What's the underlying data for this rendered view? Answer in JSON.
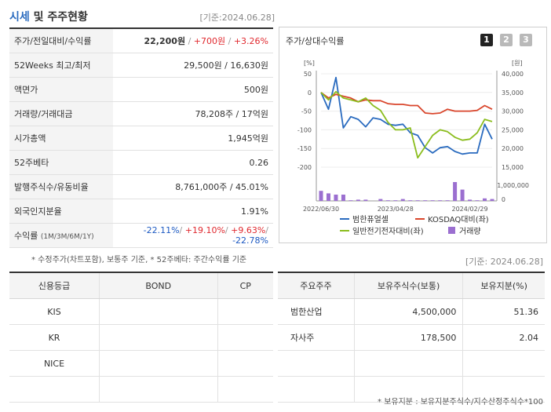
{
  "header": {
    "title_accent": "시세",
    "title_rest": " 및 주주현황",
    "ref_date": "[기준:2024.06.28]"
  },
  "metrics": [
    {
      "label": "주가/전일대비/수익률",
      "price": "22,200원",
      "change": "+700원",
      "rate": "+3.26%"
    },
    {
      "label": "52Weeks 최고/최저",
      "value": "29,500원 / 16,630원"
    },
    {
      "label": "액면가",
      "value": "500원"
    },
    {
      "label": "거래량/거래대금",
      "value": "78,208주 / 17억원"
    },
    {
      "label": "시가총액",
      "value": "1,945억원"
    },
    {
      "label": "52주베타",
      "value": "0.26"
    },
    {
      "label": "발행주식수/유동비율",
      "value": "8,761,000주 / 45.01%"
    },
    {
      "label": "외국인지분율",
      "value": "1.91%"
    },
    {
      "label": "수익률",
      "sub": "(1M/3M/6M/1Y)",
      "r1": "-22.11%",
      "r2": "+19.10%",
      "r3": "+9.63%",
      "r4": "-22.78%"
    }
  ],
  "note_left": "* 수정주가(차트포함), 보통주 기준, * 52주베타: 주간수익률 기준",
  "chart_panel": {
    "title": "주가/상대수익률",
    "pages": [
      "1",
      "2",
      "3"
    ],
    "ref_date": "[기준: 2024.06.28]"
  },
  "chart_data": {
    "type": "line",
    "x": [
      "2022/06/30",
      "2022/08",
      "2022/09",
      "2022/10",
      "2022/11",
      "2022/12",
      "2023/01",
      "2023/02",
      "2023/03",
      "2023/04",
      "2023/04/28",
      "2023/06",
      "2023/07",
      "2023/08",
      "2023/09",
      "2023/10",
      "2023/11",
      "2023/12",
      "2024/01",
      "2024/02",
      "2024/02/29",
      "2024/04",
      "2024/05",
      "2024/06"
    ],
    "x_tick_labels": [
      "2022/06/30",
      "2023/04/28",
      "2024/02/29"
    ],
    "left_axis": {
      "unit": "[%]",
      "ticks": [
        50,
        0,
        -50,
        -100,
        -150,
        -200
      ]
    },
    "right_axis": {
      "unit": "[원]",
      "ticks": [
        "40,000",
        "35,000",
        "30,000",
        "25,000",
        "20,000",
        "15,000"
      ]
    },
    "volume_axis": {
      "ticks": [
        "1,000,000",
        "0"
      ]
    },
    "series": [
      {
        "name": "범한퓨얼셀",
        "color": "#2a6bbf",
        "axis": "left",
        "values": [
          0,
          -45,
          40,
          -95,
          -65,
          -72,
          -92,
          -68,
          -72,
          -85,
          -88,
          -85,
          -108,
          -115,
          -148,
          -162,
          -148,
          -145,
          -158,
          -165,
          -162,
          -162,
          -85,
          -125
        ]
      },
      {
        "name": "KOSDAQ대비(좌)",
        "color": "#d9452b",
        "axis": "left",
        "values": [
          0,
          -15,
          -5,
          -10,
          -15,
          -25,
          -20,
          -22,
          -22,
          -30,
          -32,
          -32,
          -35,
          -35,
          -55,
          -57,
          -55,
          -45,
          -50,
          -50,
          -50,
          -48,
          -35,
          -45
        ]
      },
      {
        "name": "일반전기전자대비(좌)",
        "color": "#8bbd1e",
        "axis": "left",
        "values": [
          0,
          -20,
          2,
          -15,
          -20,
          -25,
          -15,
          -35,
          -48,
          -80,
          -100,
          -100,
          -95,
          -175,
          -145,
          -115,
          -100,
          -105,
          -120,
          -128,
          -125,
          -108,
          -72,
          -78
        ]
      }
    ],
    "volume": {
      "name": "거래량",
      "color": "#9b6fd0",
      "values": [
        0.8,
        0.6,
        0.5,
        0.5,
        0.05,
        0.1,
        0.1,
        0,
        0.15,
        0.05,
        0.05,
        0.15,
        0.05,
        0.05,
        0.05,
        0.05,
        0.05,
        0.05,
        1.5,
        0.9,
        0.1,
        0.05,
        0.2,
        0.15
      ]
    },
    "legend": [
      "범한퓨얼셀",
      "KOSDAQ대비(좌)",
      "일반전기전자대비(좌)",
      "거래량"
    ]
  },
  "credit": {
    "headers": [
      "신용등급",
      "BOND",
      "CP"
    ],
    "rows": [
      [
        "KIS",
        "",
        ""
      ],
      [
        "KR",
        "",
        ""
      ],
      [
        "NICE",
        "",
        ""
      ],
      [
        "",
        "",
        ""
      ]
    ]
  },
  "holders": {
    "headers": [
      "주요주주",
      "보유주식수(보통)",
      "보유지분(%)"
    ],
    "rows": [
      [
        "범한산업",
        "4,500,000",
        "51.36"
      ],
      [
        "자사주",
        "178,500",
        "2.04"
      ],
      [
        "",
        "",
        ""
      ],
      [
        "",
        "",
        ""
      ]
    ]
  },
  "note_right": "* 보유지분 : 보유지분주식수/지수산정주식수*100"
}
